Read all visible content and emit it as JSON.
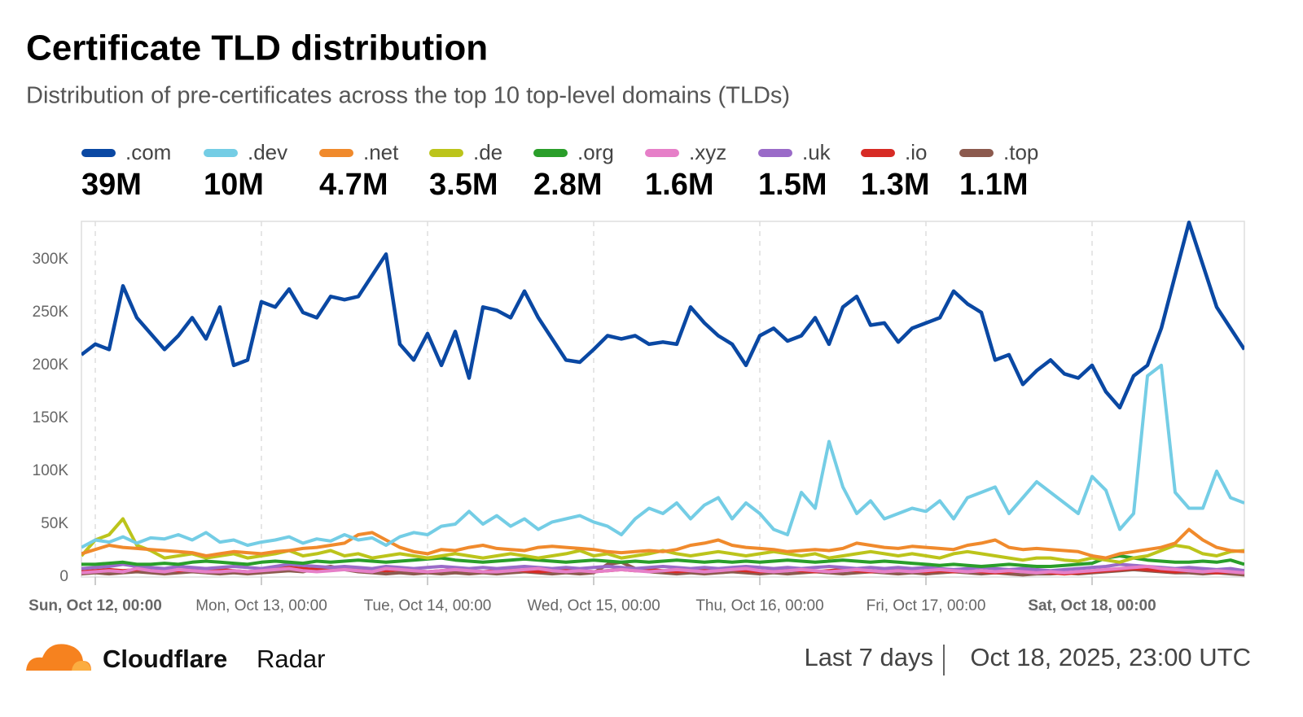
{
  "chart_data": {
    "type": "line",
    "title": "Certificate TLD distribution",
    "subtitle": "Distribution of pre-certificates across the top 10 top-level domains (TLDs)",
    "categories": [
      null,
      "Sun, Oct 12, 00:00",
      null,
      null,
      null,
      null,
      null,
      null,
      null,
      null,
      null,
      null,
      null,
      "Mon, Oct 13, 00:00",
      null,
      null,
      null,
      null,
      null,
      null,
      null,
      null,
      null,
      null,
      null,
      "Tue, Oct 14, 00:00",
      null,
      null,
      null,
      null,
      null,
      null,
      null,
      null,
      null,
      null,
      null,
      "Wed, Oct 15, 00:00",
      null,
      null,
      null,
      null,
      null,
      null,
      null,
      null,
      null,
      null,
      null,
      "Thu, Oct 16, 00:00",
      null,
      null,
      null,
      null,
      null,
      null,
      null,
      null,
      null,
      null,
      null,
      "Fri, Oct 17, 00:00",
      null,
      null,
      null,
      null,
      null,
      null,
      null,
      null,
      null,
      null,
      null,
      "Sat, Oct 18, 00:00",
      null,
      null,
      null,
      null,
      null,
      null,
      null,
      null,
      null,
      null,
      null
    ],
    "ylim": [
      0,
      336
    ],
    "yticks": [
      0,
      {
        "value": 50,
        "label": "50K"
      },
      {
        "value": 100,
        "label": "100K"
      },
      {
        "value": 150,
        "label": "150K"
      },
      {
        "value": 200,
        "label": "200K"
      },
      {
        "value": 250,
        "label": "250K"
      },
      {
        "value": 300,
        "label": "300K"
      }
    ],
    "grid": true,
    "series": [
      {
        "name": ".com",
        "color": "#0a48a3",
        "total": "39M",
        "values": [
          210,
          220,
          215,
          275,
          245,
          230,
          215,
          228,
          245,
          225,
          255,
          200,
          205,
          260,
          255,
          272,
          250,
          245,
          265,
          262,
          265,
          285,
          305,
          220,
          205,
          230,
          200,
          232,
          188,
          255,
          252,
          245,
          270,
          245,
          225,
          205,
          203,
          215,
          228,
          225,
          228,
          220,
          222,
          220,
          255,
          240,
          228,
          220,
          200,
          228,
          235,
          223,
          228,
          245,
          220,
          255,
          265,
          238,
          240,
          222,
          235,
          240,
          245,
          270,
          258,
          250,
          205,
          210,
          182,
          195,
          205,
          192,
          188,
          200,
          175,
          160,
          190,
          200,
          235,
          285,
          335,
          295,
          255,
          235,
          215
        ]
      },
      {
        "name": ".dev",
        "color": "#74cde5",
        "total": "10M",
        "values": [
          28,
          35,
          33,
          38,
          32,
          37,
          36,
          40,
          35,
          42,
          33,
          35,
          30,
          33,
          35,
          38,
          32,
          36,
          34,
          40,
          35,
          37,
          30,
          38,
          42,
          40,
          48,
          50,
          62,
          50,
          58,
          48,
          55,
          45,
          52,
          55,
          58,
          52,
          48,
          40,
          55,
          65,
          60,
          70,
          55,
          68,
          75,
          55,
          70,
          60,
          45,
          40,
          80,
          65,
          128,
          85,
          60,
          72,
          55,
          60,
          65,
          62,
          72,
          55,
          75,
          80,
          85,
          60,
          75,
          90,
          80,
          70,
          60,
          95,
          82,
          45,
          60,
          190,
          200,
          80,
          65,
          65,
          100,
          75,
          70
        ]
      },
      {
        "name": ".net",
        "color": "#f08a2c",
        "total": "4.7M",
        "values": [
          22,
          26,
          30,
          28,
          27,
          26,
          25,
          24,
          23,
          20,
          22,
          24,
          23,
          22,
          24,
          25,
          27,
          28,
          30,
          32,
          40,
          42,
          35,
          28,
          24,
          22,
          26,
          25,
          28,
          30,
          27,
          26,
          25,
          28,
          29,
          28,
          27,
          26,
          24,
          23,
          24,
          25,
          24,
          26,
          30,
          32,
          35,
          30,
          28,
          27,
          26,
          24,
          25,
          26,
          25,
          27,
          32,
          30,
          28,
          27,
          29,
          28,
          27,
          26,
          30,
          32,
          35,
          28,
          26,
          27,
          26,
          25,
          24,
          20,
          18,
          22,
          24,
          26,
          28,
          32,
          45,
          35,
          28,
          25,
          24
        ]
      },
      {
        "name": ".de",
        "color": "#bcc41b",
        "total": "3.5M",
        "values": [
          20,
          35,
          40,
          55,
          30,
          25,
          18,
          20,
          22,
          18,
          20,
          22,
          18,
          20,
          22,
          25,
          20,
          22,
          25,
          20,
          22,
          18,
          20,
          22,
          20,
          18,
          20,
          22,
          20,
          18,
          20,
          22,
          20,
          18,
          20,
          22,
          25,
          20,
          22,
          18,
          20,
          22,
          25,
          22,
          20,
          22,
          24,
          22,
          20,
          22,
          24,
          22,
          20,
          22,
          18,
          20,
          22,
          24,
          22,
          20,
          22,
          20,
          18,
          22,
          24,
          22,
          20,
          18,
          16,
          18,
          18,
          16,
          15,
          18,
          16,
          14,
          18,
          20,
          25,
          30,
          28,
          22,
          20,
          24,
          25
        ]
      },
      {
        "name": ".org",
        "color": "#2a9e2a",
        "total": "2.8M",
        "values": [
          12,
          12,
          13,
          14,
          12,
          12,
          13,
          12,
          14,
          15,
          14,
          13,
          12,
          14,
          15,
          14,
          13,
          15,
          14,
          15,
          16,
          15,
          14,
          15,
          16,
          17,
          18,
          16,
          15,
          14,
          15,
          16,
          17,
          16,
          15,
          14,
          15,
          16,
          15,
          14,
          15,
          14,
          15,
          16,
          15,
          14,
          15,
          14,
          15,
          14,
          15,
          16,
          15,
          14,
          15,
          16,
          15,
          14,
          15,
          14,
          13,
          12,
          11,
          12,
          11,
          10,
          11,
          12,
          11,
          10,
          10,
          11,
          12,
          13,
          18,
          20,
          18,
          16,
          15,
          14,
          14,
          15,
          14,
          16,
          12
        ]
      },
      {
        "name": ".xyz",
        "color": "#e67fc8",
        "total": "1.6M",
        "values": [
          4,
          5,
          6,
          5,
          8,
          6,
          5,
          7,
          6,
          5,
          5,
          6,
          5,
          6,
          7,
          8,
          6,
          5,
          6,
          7,
          6,
          5,
          8,
          7,
          6,
          5,
          6,
          7,
          6,
          5,
          5,
          6,
          7,
          8,
          6,
          5,
          6,
          5,
          6,
          7,
          6,
          5,
          6,
          7,
          6,
          5,
          6,
          7,
          8,
          6,
          5,
          6,
          7,
          6,
          5,
          6,
          7,
          6,
          5,
          6,
          5,
          6,
          7,
          6,
          5,
          6,
          5,
          6,
          5,
          4,
          5,
          4,
          5,
          6,
          7,
          8,
          9,
          10,
          8,
          7,
          6,
          5,
          6,
          5,
          4
        ]
      },
      {
        "name": ".uk",
        "color": "#9a6bc8",
        "total": "1.5M",
        "values": [
          8,
          9,
          10,
          12,
          10,
          9,
          8,
          10,
          9,
          8,
          9,
          10,
          9,
          8,
          10,
          12,
          11,
          10,
          9,
          10,
          9,
          8,
          10,
          9,
          8,
          9,
          10,
          9,
          8,
          9,
          8,
          9,
          10,
          9,
          8,
          9,
          8,
          9,
          10,
          9,
          8,
          9,
          10,
          9,
          8,
          9,
          8,
          9,
          10,
          9,
          8,
          9,
          8,
          9,
          10,
          9,
          8,
          9,
          8,
          9,
          8,
          9,
          8,
          7,
          8,
          9,
          8,
          7,
          8,
          7,
          6,
          7,
          8,
          9,
          10,
          12,
          11,
          10,
          9,
          8,
          9,
          8,
          7,
          8,
          6
        ]
      },
      {
        "name": ".io",
        "color": "#d72b25",
        "total": "1.3M",
        "values": [
          5,
          6,
          7,
          6,
          7,
          8,
          7,
          6,
          7,
          8,
          7,
          6,
          5,
          6,
          8,
          9,
          8,
          7,
          8,
          9,
          8,
          7,
          6,
          7,
          6,
          5,
          6,
          7,
          6,
          5,
          6,
          7,
          6,
          5,
          6,
          7,
          6,
          5,
          6,
          7,
          6,
          7,
          6,
          5,
          6,
          7,
          6,
          7,
          6,
          5,
          6,
          7,
          6,
          5,
          6,
          7,
          6,
          5,
          6,
          7,
          6,
          5,
          6,
          5,
          6,
          5,
          4,
          5,
          6,
          5,
          4,
          3,
          4,
          5,
          6,
          7,
          8,
          7,
          6,
          5,
          6,
          5,
          4,
          5,
          4
        ]
      },
      {
        "name": ".top",
        "color": "#8c5a4e",
        "total": "1.1M",
        "values": [
          3,
          4,
          3,
          4,
          5,
          4,
          3,
          4,
          5,
          4,
          3,
          4,
          3,
          4,
          5,
          6,
          5,
          8,
          10,
          7,
          5,
          4,
          3,
          4,
          3,
          4,
          3,
          4,
          3,
          4,
          3,
          4,
          5,
          4,
          3,
          4,
          3,
          4,
          12,
          14,
          8,
          5,
          4,
          3,
          4,
          3,
          4,
          5,
          4,
          3,
          4,
          3,
          4,
          5,
          4,
          3,
          4,
          5,
          4,
          3,
          4,
          3,
          4,
          5,
          4,
          3,
          4,
          3,
          2,
          3,
          3,
          4,
          3,
          4,
          5,
          6,
          7,
          6,
          5,
          4,
          4,
          3,
          4,
          3,
          2
        ]
      }
    ],
    "brand": "Cloudflare",
    "brand_product": "Radar",
    "period": "Last 7 days",
    "timestamp": "Oct 18, 2025, 23:00 UTC"
  }
}
